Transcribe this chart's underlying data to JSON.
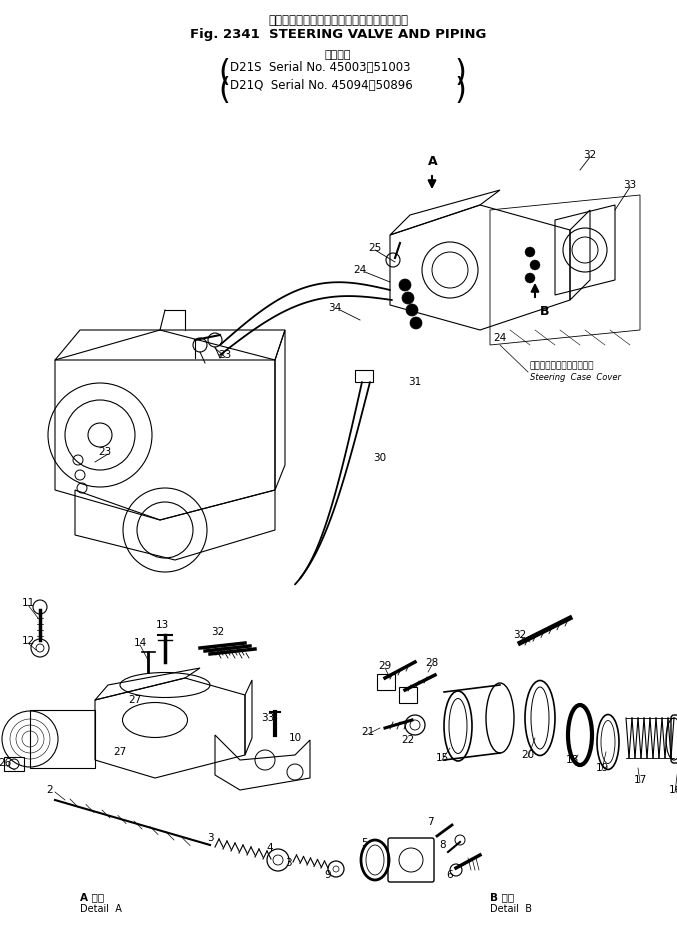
{
  "title_jp": "ステアリング　バルブ　および　パイピング",
  "title_en": "Fig. 2341  STEERING VALVE AND PIPING",
  "subtitle_jp": "適用号機",
  "serial1": "D21S  Serial No. 45003～51003",
  "serial2": "D21Q  Serial No. 45094～50896",
  "bg_color": "#ffffff",
  "text_color": "#000000",
  "figsize": [
    6.77,
    9.31
  ],
  "dpi": 100,
  "steering_case_jp": "ステアリングケースカバー",
  "steering_case_en": "Steering  Case  Cover",
  "detail_A_label_jp": "A 詳細",
  "detail_A_label_en": "Detail  A",
  "detail_B_label_jp": "B 詳細",
  "detail_B_label_en": "Detail  B"
}
